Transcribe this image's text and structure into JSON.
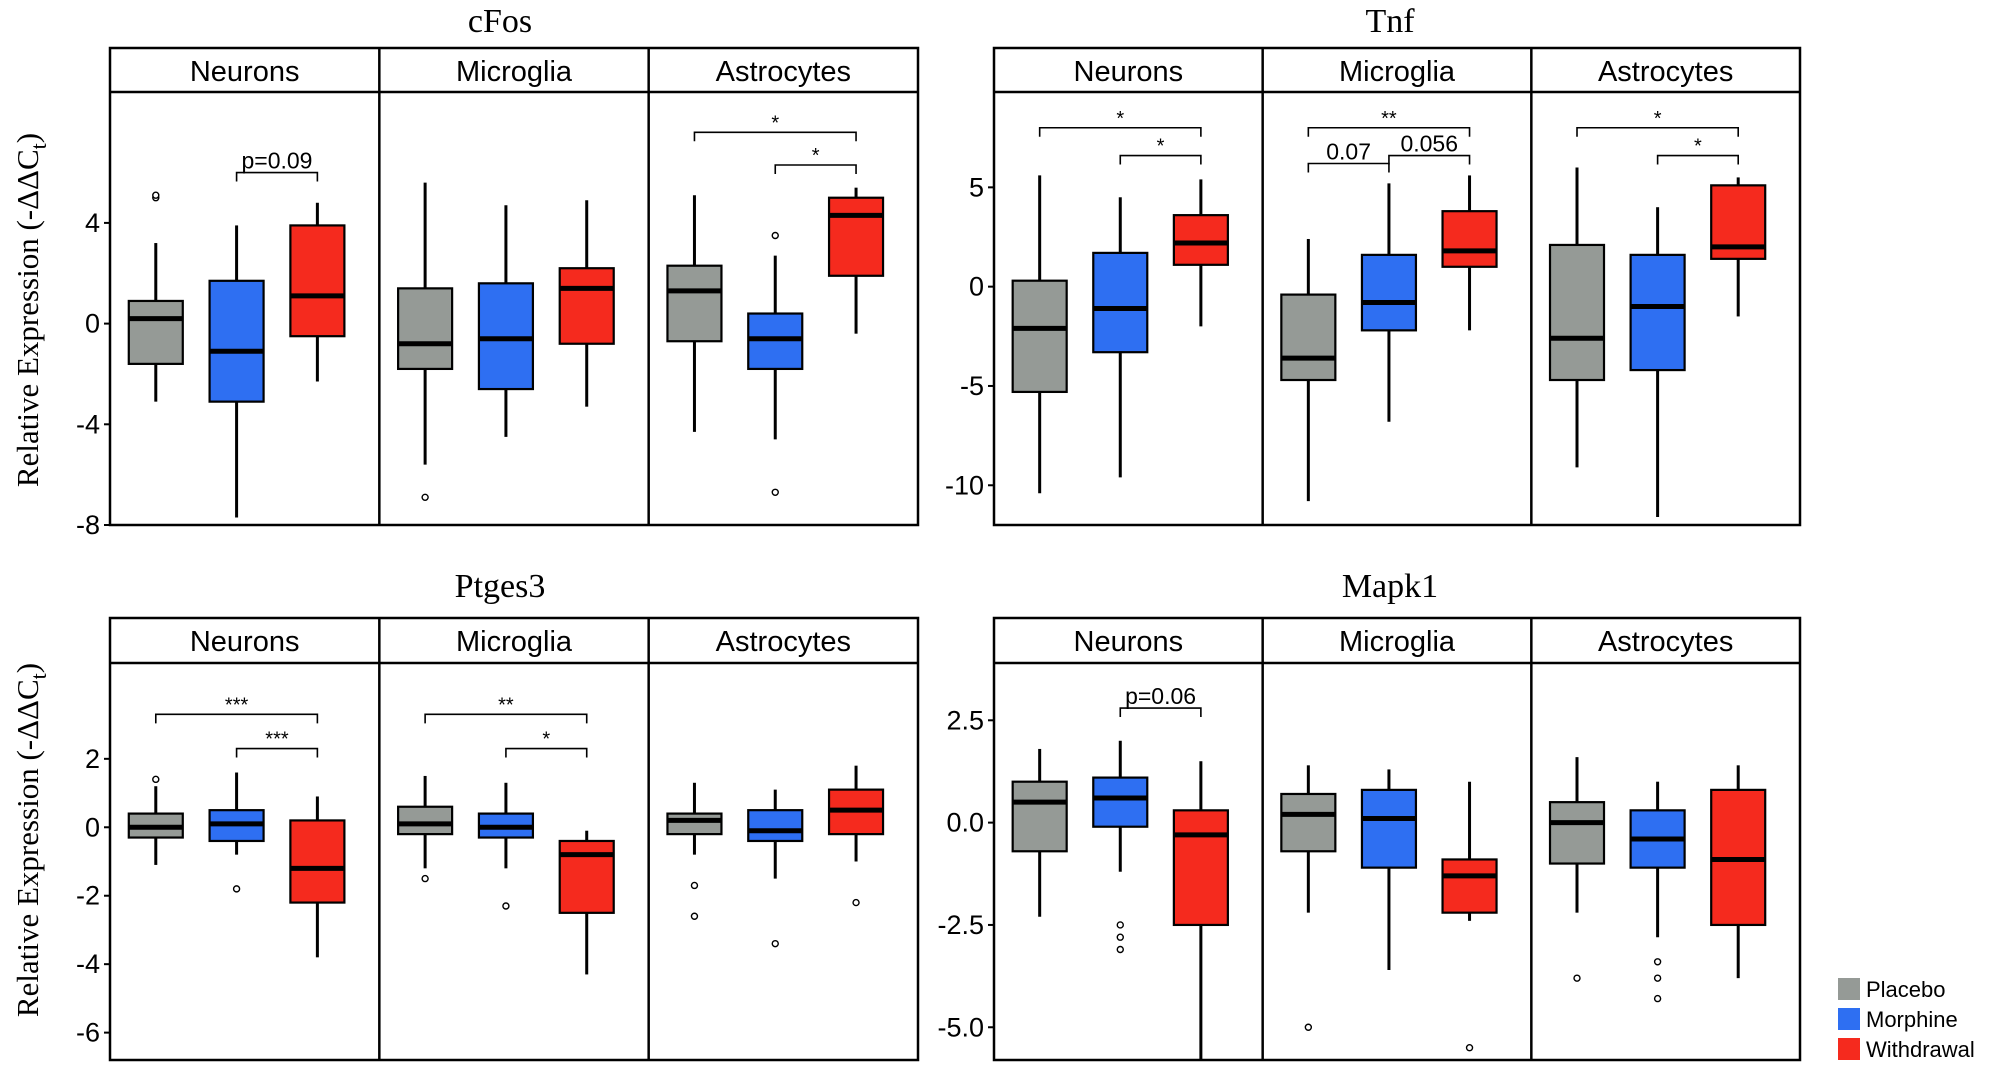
{
  "ylabel_text": "Relative Expression (-ΔΔC",
  "ylabel_sub": "t",
  "ylabel_close": ")",
  "colors": {
    "Placebo": "#959a96",
    "Morphine": "#2e6ff2",
    "Withdrawal": "#f52a1e"
  },
  "legend": [
    {
      "label": "Placebo",
      "color": "#959a96"
    },
    {
      "label": "Morphine",
      "color": "#2e6ff2"
    },
    {
      "label": "Withdrawal",
      "color": "#f52a1e"
    }
  ],
  "chart_data": [
    {
      "type": "boxplot",
      "title": "cFos",
      "ylabel": "Relative Expression (-ΔΔCt)",
      "ylim": [
        -8,
        9.2
      ],
      "yticks": [
        4,
        0,
        -4,
        -8
      ],
      "ytick_labels": [
        "4",
        "0",
        "-4",
        "-8"
      ],
      "groups": [
        "Placebo",
        "Morphine",
        "Withdrawal"
      ],
      "facets": [
        {
          "name": "Neurons",
          "boxes": [
            {
              "group": "Placebo",
              "whislo": -3.1,
              "q1": -1.6,
              "med": 0.2,
              "q3": 0.9,
              "whishi": 3.2,
              "fliers": [
                5.0,
                5.1
              ]
            },
            {
              "group": "Morphine",
              "whislo": -7.7,
              "q1": -3.1,
              "med": -1.1,
              "q3": 1.7,
              "whishi": 3.9,
              "fliers": []
            },
            {
              "group": "Withdrawal",
              "whislo": -2.3,
              "q1": -0.5,
              "med": 1.1,
              "q3": 3.9,
              "whishi": 4.8,
              "fliers": []
            }
          ],
          "sig": [
            {
              "from": 1,
              "to": 2,
              "y": 6.0,
              "label": "p=0.09"
            }
          ]
        },
        {
          "name": "Microglia",
          "boxes": [
            {
              "group": "Placebo",
              "whislo": -5.6,
              "q1": -1.8,
              "med": -0.8,
              "q3": 1.4,
              "whishi": 5.6,
              "fliers": [
                -6.9
              ]
            },
            {
              "group": "Morphine",
              "whislo": -4.5,
              "q1": -2.6,
              "med": -0.6,
              "q3": 1.6,
              "whishi": 4.7,
              "fliers": []
            },
            {
              "group": "Withdrawal",
              "whislo": -3.3,
              "q1": -0.8,
              "med": 1.4,
              "q3": 2.2,
              "whishi": 4.9,
              "fliers": []
            }
          ],
          "sig": []
        },
        {
          "name": "Astrocytes",
          "boxes": [
            {
              "group": "Placebo",
              "whislo": -4.3,
              "q1": -0.7,
              "med": 1.3,
              "q3": 2.3,
              "whishi": 5.1,
              "fliers": []
            },
            {
              "group": "Morphine",
              "whislo": -4.6,
              "q1": -1.8,
              "med": -0.6,
              "q3": 0.4,
              "whishi": 2.7,
              "fliers": [
                3.5,
                -6.7
              ]
            },
            {
              "group": "Withdrawal",
              "whislo": -0.4,
              "q1": 1.9,
              "med": 4.3,
              "q3": 5.0,
              "whishi": 5.4,
              "fliers": []
            }
          ],
          "sig": [
            {
              "from": 0,
              "to": 2,
              "y": 7.6,
              "label": "*"
            },
            {
              "from": 1,
              "to": 2,
              "y": 6.3,
              "label": "*"
            }
          ]
        }
      ]
    },
    {
      "type": "boxplot",
      "title": "Tnf",
      "ylabel": "Relative Expression (-ΔΔCt)",
      "ylim": [
        -12,
        9.8
      ],
      "yticks": [
        5,
        0,
        -5,
        -10
      ],
      "ytick_labels": [
        "5",
        "0",
        "-5",
        "-10"
      ],
      "groups": [
        "Placebo",
        "Morphine",
        "Withdrawal"
      ],
      "facets": [
        {
          "name": "Neurons",
          "boxes": [
            {
              "group": "Placebo",
              "whislo": -10.4,
              "q1": -5.3,
              "med": -2.1,
              "q3": 0.3,
              "whishi": 5.6,
              "fliers": []
            },
            {
              "group": "Morphine",
              "whislo": -9.6,
              "q1": -3.3,
              "med": -1.1,
              "q3": 1.7,
              "whishi": 4.5,
              "fliers": []
            },
            {
              "group": "Withdrawal",
              "whislo": -2.0,
              "q1": 1.1,
              "med": 2.2,
              "q3": 3.6,
              "whishi": 5.4,
              "fliers": []
            }
          ],
          "sig": [
            {
              "from": 0,
              "to": 2,
              "y": 8.0,
              "label": "*"
            },
            {
              "from": 1,
              "to": 2,
              "y": 6.6,
              "label": "*"
            }
          ]
        },
        {
          "name": "Microglia",
          "boxes": [
            {
              "group": "Placebo",
              "whislo": -10.8,
              "q1": -4.7,
              "med": -3.6,
              "q3": -0.4,
              "whishi": 2.4,
              "fliers": []
            },
            {
              "group": "Morphine",
              "whislo": -6.8,
              "q1": -2.2,
              "med": -0.8,
              "q3": 1.6,
              "whishi": 5.2,
              "fliers": []
            },
            {
              "group": "Withdrawal",
              "whislo": -2.2,
              "q1": 1.0,
              "med": 1.8,
              "q3": 3.8,
              "whishi": 5.6,
              "fliers": []
            }
          ],
          "sig": [
            {
              "from": 0,
              "to": 2,
              "y": 8.0,
              "label": "**"
            },
            {
              "from": 0,
              "to": 1,
              "y": 6.2,
              "label": "0.07"
            },
            {
              "from": 1,
              "to": 2,
              "y": 6.6,
              "label": "0.056"
            }
          ]
        },
        {
          "name": "Astrocytes",
          "boxes": [
            {
              "group": "Placebo",
              "whislo": -9.1,
              "q1": -4.7,
              "med": -2.6,
              "q3": 2.1,
              "whishi": 6.0,
              "fliers": []
            },
            {
              "group": "Morphine",
              "whislo": -11.6,
              "q1": -4.2,
              "med": -1.0,
              "q3": 1.6,
              "whishi": 4.0,
              "fliers": []
            },
            {
              "group": "Withdrawal",
              "whislo": -1.5,
              "q1": 1.4,
              "med": 2.0,
              "q3": 5.1,
              "whishi": 5.5,
              "fliers": []
            }
          ],
          "sig": [
            {
              "from": 0,
              "to": 2,
              "y": 8.0,
              "label": "*"
            },
            {
              "from": 1,
              "to": 2,
              "y": 6.6,
              "label": "*"
            }
          ]
        }
      ]
    },
    {
      "type": "boxplot",
      "title": "Ptges3",
      "ylabel": "Relative Expression (-ΔΔCt)",
      "ylim": [
        -6.8,
        4.8
      ],
      "yticks": [
        2,
        0,
        -2,
        -4,
        -6
      ],
      "ytick_labels": [
        "2",
        "0",
        "-2",
        "-4",
        "-6"
      ],
      "groups": [
        "Placebo",
        "Morphine",
        "Withdrawal"
      ],
      "facets": [
        {
          "name": "Neurons",
          "boxes": [
            {
              "group": "Placebo",
              "whislo": -1.1,
              "q1": -0.3,
              "med": 0.0,
              "q3": 0.4,
              "whishi": 1.2,
              "fliers": [
                1.4
              ]
            },
            {
              "group": "Morphine",
              "whislo": -0.8,
              "q1": -0.4,
              "med": 0.1,
              "q3": 0.5,
              "whishi": 1.6,
              "fliers": [
                -1.8
              ]
            },
            {
              "group": "Withdrawal",
              "whislo": -3.8,
              "q1": -2.2,
              "med": -1.2,
              "q3": 0.2,
              "whishi": 0.9,
              "fliers": []
            }
          ],
          "sig": [
            {
              "from": 0,
              "to": 2,
              "y": 3.3,
              "label": "***"
            },
            {
              "from": 1,
              "to": 2,
              "y": 2.3,
              "label": "***"
            }
          ]
        },
        {
          "name": "Microglia",
          "boxes": [
            {
              "group": "Placebo",
              "whislo": -1.2,
              "q1": -0.2,
              "med": 0.1,
              "q3": 0.6,
              "whishi": 1.5,
              "fliers": [
                -1.5
              ]
            },
            {
              "group": "Morphine",
              "whislo": -1.2,
              "q1": -0.3,
              "med": 0.0,
              "q3": 0.4,
              "whishi": 1.3,
              "fliers": [
                -2.3
              ]
            },
            {
              "group": "Withdrawal",
              "whislo": -4.3,
              "q1": -2.5,
              "med": -0.8,
              "q3": -0.4,
              "whishi": -0.1,
              "fliers": []
            }
          ],
          "sig": [
            {
              "from": 0,
              "to": 2,
              "y": 3.3,
              "label": "**"
            },
            {
              "from": 1,
              "to": 2,
              "y": 2.3,
              "label": "*"
            }
          ]
        },
        {
          "name": "Astrocytes",
          "boxes": [
            {
              "group": "Placebo",
              "whislo": -0.8,
              "q1": -0.2,
              "med": 0.2,
              "q3": 0.4,
              "whishi": 1.3,
              "fliers": [
                -1.7,
                -2.6
              ]
            },
            {
              "group": "Morphine",
              "whislo": -1.5,
              "q1": -0.4,
              "med": -0.1,
              "q3": 0.5,
              "whishi": 1.1,
              "fliers": [
                -3.4
              ]
            },
            {
              "group": "Withdrawal",
              "whislo": -1.0,
              "q1": -0.2,
              "med": 0.5,
              "q3": 1.1,
              "whishi": 1.8,
              "fliers": [
                -2.2
              ]
            }
          ],
          "sig": []
        }
      ]
    },
    {
      "type": "boxplot",
      "title": "Mapk1",
      "ylabel": "Relative Expression (-ΔΔCt)",
      "ylim": [
        -5.8,
        3.9
      ],
      "yticks": [
        2.5,
        0.0,
        -2.5,
        -5.0
      ],
      "ytick_labels": [
        "2.5",
        "0.0",
        "-2.5",
        "-5.0"
      ],
      "groups": [
        "Placebo",
        "Morphine",
        "Withdrawal"
      ],
      "facets": [
        {
          "name": "Neurons",
          "boxes": [
            {
              "group": "Placebo",
              "whislo": -2.3,
              "q1": -0.7,
              "med": 0.5,
              "q3": 1.0,
              "whishi": 1.8,
              "fliers": []
            },
            {
              "group": "Morphine",
              "whislo": -1.2,
              "q1": -0.1,
              "med": 0.6,
              "q3": 1.1,
              "whishi": 2.0,
              "fliers": [
                -2.5,
                -2.8,
                -3.1
              ]
            },
            {
              "group": "Withdrawal",
              "whislo": -5.8,
              "q1": -2.5,
              "med": -0.3,
              "q3": 0.3,
              "whishi": 1.5,
              "fliers": []
            }
          ],
          "sig": [
            {
              "from": 1,
              "to": 2,
              "y": 2.8,
              "label": "p=0.06"
            }
          ]
        },
        {
          "name": "Microglia",
          "boxes": [
            {
              "group": "Placebo",
              "whislo": -2.2,
              "q1": -0.7,
              "med": 0.2,
              "q3": 0.7,
              "whishi": 1.4,
              "fliers": [
                -5.0
              ]
            },
            {
              "group": "Morphine",
              "whislo": -3.6,
              "q1": -1.1,
              "med": 0.1,
              "q3": 0.8,
              "whishi": 1.3,
              "fliers": []
            },
            {
              "group": "Withdrawal",
              "whislo": -2.4,
              "q1": -2.2,
              "med": -1.3,
              "q3": -0.9,
              "whishi": 1.0,
              "fliers": [
                -5.5
              ]
            }
          ],
          "sig": []
        },
        {
          "name": "Astrocytes",
          "boxes": [
            {
              "group": "Placebo",
              "whislo": -2.2,
              "q1": -1.0,
              "med": 0.0,
              "q3": 0.5,
              "whishi": 1.6,
              "fliers": [
                -3.8
              ]
            },
            {
              "group": "Morphine",
              "whislo": -2.8,
              "q1": -1.1,
              "med": -0.4,
              "q3": 0.3,
              "whishi": 1.0,
              "fliers": [
                -3.4,
                -3.8,
                -4.3
              ]
            },
            {
              "group": "Withdrawal",
              "whislo": -3.8,
              "q1": -2.5,
              "med": -0.9,
              "q3": 0.8,
              "whishi": 1.4,
              "fliers": []
            }
          ],
          "sig": []
        }
      ]
    }
  ]
}
